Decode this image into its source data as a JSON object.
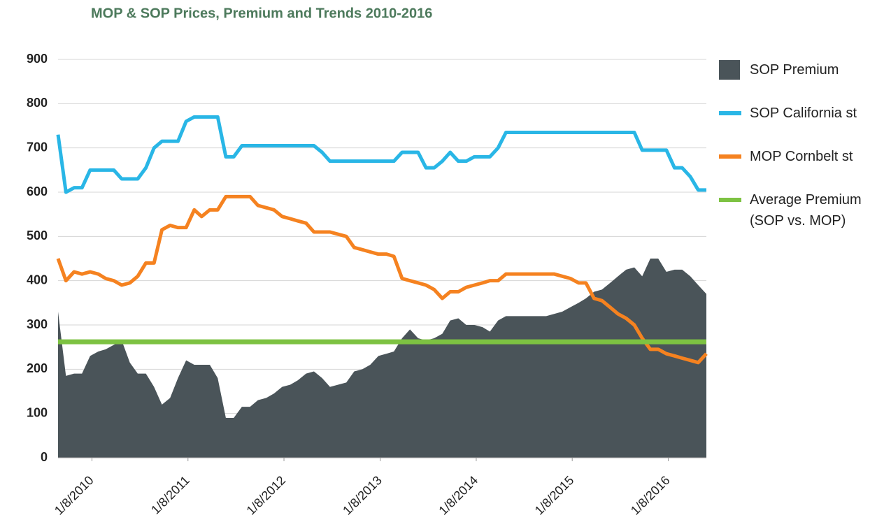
{
  "chart_data": {
    "type": "line",
    "title": "MOP & SOP Prices, Premium and Trends 2010-2016",
    "x": [
      "2009-09",
      "2009-10",
      "2009-11",
      "2009-12",
      "2010-01",
      "2010-02",
      "2010-03",
      "2010-04",
      "2010-05",
      "2010-06",
      "2010-07",
      "2010-08",
      "2010-09",
      "2010-10",
      "2010-11",
      "2010-12",
      "2011-01",
      "2011-02",
      "2011-03",
      "2011-04",
      "2011-05",
      "2011-06",
      "2011-07",
      "2011-08",
      "2011-09",
      "2011-10",
      "2011-11",
      "2011-12",
      "2012-01",
      "2012-02",
      "2012-03",
      "2012-04",
      "2012-05",
      "2012-06",
      "2012-07",
      "2012-08",
      "2012-09",
      "2012-10",
      "2012-11",
      "2012-12",
      "2013-01",
      "2013-02",
      "2013-03",
      "2013-04",
      "2013-05",
      "2013-06",
      "2013-07",
      "2013-08",
      "2013-09",
      "2013-10",
      "2013-11",
      "2013-12",
      "2014-01",
      "2014-02",
      "2014-03",
      "2014-04",
      "2014-05",
      "2014-06",
      "2014-07",
      "2014-08",
      "2014-09",
      "2014-10",
      "2014-11",
      "2014-12",
      "2015-01",
      "2015-02",
      "2015-03",
      "2015-04",
      "2015-05",
      "2015-06",
      "2015-07",
      "2015-08",
      "2015-09",
      "2015-10",
      "2015-11",
      "2015-12",
      "2016-01",
      "2016-02",
      "2016-03",
      "2016-04",
      "2016-05",
      "2016-06"
    ],
    "xlim": [
      "2009-09",
      "2016-06"
    ],
    "xticks": [
      {
        "value": "2010-01-08",
        "label": "1/8/2010"
      },
      {
        "value": "2011-01-08",
        "label": "1/8/2011"
      },
      {
        "value": "2012-01-08",
        "label": "1/8/2012"
      },
      {
        "value": "2013-01-08",
        "label": "1/8/2013"
      },
      {
        "value": "2014-01-08",
        "label": "1/8/2014"
      },
      {
        "value": "2015-01-08",
        "label": "1/8/2015"
      },
      {
        "value": "2016-01-08",
        "label": "1/8/2016"
      }
    ],
    "ylim": [
      0,
      900
    ],
    "yticks": [
      0,
      100,
      200,
      300,
      400,
      500,
      600,
      700,
      800,
      900
    ],
    "grid": true,
    "legend": "right",
    "series": [
      {
        "name": "SOP Premium",
        "style": "area",
        "color": "#4a5459",
        "values": [
          330,
          185,
          190,
          190,
          230,
          240,
          245,
          255,
          265,
          215,
          190,
          190,
          160,
          120,
          135,
          180,
          220,
          210,
          210,
          210,
          180,
          90,
          90,
          115,
          115,
          130,
          135,
          145,
          160,
          165,
          175,
          190,
          195,
          180,
          160,
          165,
          170,
          195,
          200,
          210,
          230,
          235,
          240,
          270,
          290,
          270,
          265,
          270,
          280,
          310,
          315,
          300,
          300,
          295,
          285,
          310,
          320,
          320,
          320,
          320,
          320,
          320,
          325,
          330,
          340,
          350,
          360,
          375,
          380,
          395,
          410,
          425,
          430,
          410,
          450,
          450,
          420,
          425,
          425,
          410,
          390,
          370
        ]
      },
      {
        "name": "SOP California st",
        "style": "line",
        "color": "#29b6e6",
        "values": [
          730,
          600,
          610,
          610,
          650,
          650,
          650,
          650,
          630,
          630,
          630,
          655,
          700,
          715,
          715,
          715,
          760,
          770,
          770,
          770,
          770,
          680,
          680,
          705,
          705,
          705,
          705,
          705,
          705,
          705,
          705,
          705,
          705,
          690,
          670,
          670,
          670,
          670,
          670,
          670,
          670,
          670,
          670,
          690,
          690,
          690,
          655,
          655,
          670,
          690,
          670,
          670,
          680,
          680,
          680,
          700,
          735,
          735,
          735,
          735,
          735,
          735,
          735,
          735,
          735,
          735,
          735,
          735,
          735,
          735,
          735,
          735,
          735,
          695,
          695,
          695,
          695,
          655,
          655,
          635,
          605,
          605
        ]
      },
      {
        "name": "MOP Cornbelt st",
        "style": "line",
        "color": "#f58220",
        "values": [
          450,
          400,
          420,
          415,
          420,
          415,
          405,
          400,
          390,
          395,
          410,
          440,
          440,
          515,
          525,
          520,
          520,
          560,
          545,
          560,
          560,
          590,
          590,
          590,
          590,
          570,
          565,
          560,
          545,
          540,
          535,
          530,
          510,
          510,
          510,
          505,
          500,
          475,
          470,
          465,
          460,
          460,
          455,
          405,
          400,
          395,
          390,
          380,
          360,
          375,
          375,
          385,
          390,
          395,
          400,
          400,
          415,
          415,
          415,
          415,
          415,
          415,
          415,
          410,
          405,
          395,
          395,
          360,
          355,
          340,
          325,
          315,
          300,
          270,
          245,
          245,
          235,
          230,
          225,
          220,
          215,
          235
        ]
      },
      {
        "name": "Average Premium (SOP vs. MOP)",
        "style": "hline",
        "color": "#7dc242",
        "value": 262
      }
    ]
  }
}
